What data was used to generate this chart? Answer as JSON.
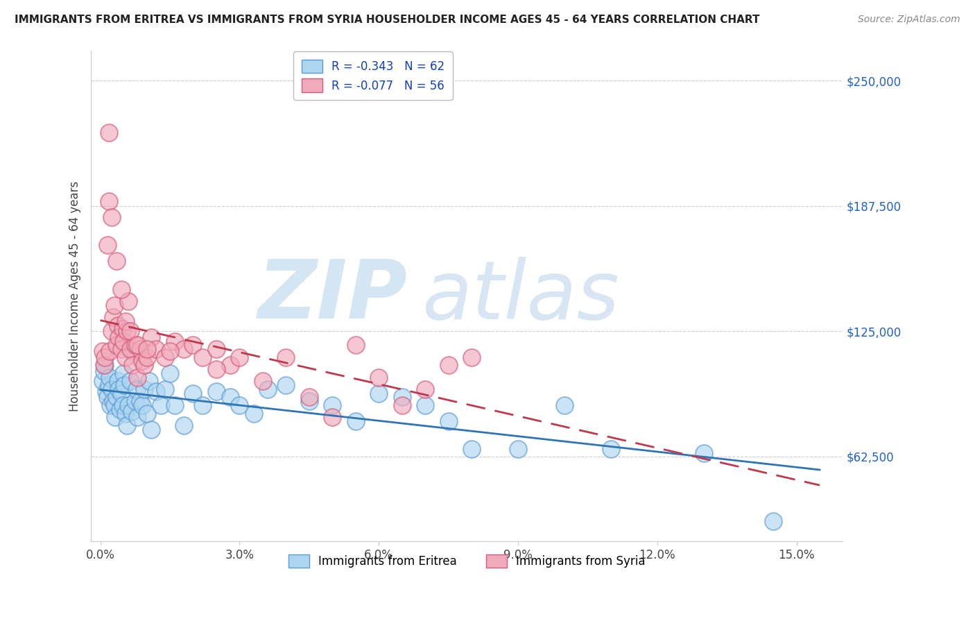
{
  "title": "IMMIGRANTS FROM ERITREA VS IMMIGRANTS FROM SYRIA HOUSEHOLDER INCOME AGES 45 - 64 YEARS CORRELATION CHART",
  "source": "Source: ZipAtlas.com",
  "ylabel": "Householder Income Ages 45 - 64 years",
  "ytick_labels": [
    "$62,500",
    "$125,000",
    "$187,500",
    "$250,000"
  ],
  "ytick_vals": [
    62500,
    125000,
    187500,
    250000
  ],
  "xtick_labels": [
    "0.0%",
    "3.0%",
    "6.0%",
    "9.0%",
    "12.0%",
    "15.0%"
  ],
  "xtick_vals": [
    0,
    3,
    6,
    9,
    12,
    15
  ],
  "ylim": [
    20000,
    265000
  ],
  "xlim": [
    -0.2,
    16.0
  ],
  "R_eritrea": -0.343,
  "N_eritrea": 62,
  "R_syria": -0.077,
  "N_syria": 56,
  "color_eritrea_fill": "#AED6F1",
  "color_eritrea_edge": "#5B9BD5",
  "color_syria_fill": "#F1AABB",
  "color_syria_edge": "#D45B7A",
  "trendline_eritrea_color": "#2E75B6",
  "trendline_syria_color": "#C0384B",
  "background_color": "#FFFFFF",
  "watermark_zip_color": "#D0E4F2",
  "watermark_atlas_color": "#C8DCF0",
  "title_fontsize": 11,
  "source_fontsize": 10,
  "tick_fontsize": 12,
  "ylabel_fontsize": 12,
  "legend_fontsize": 12,
  "eritrea_x": [
    0.05,
    0.08,
    0.1,
    0.12,
    0.15,
    0.18,
    0.2,
    0.22,
    0.25,
    0.28,
    0.3,
    0.32,
    0.35,
    0.38,
    0.4,
    0.42,
    0.45,
    0.48,
    0.5,
    0.52,
    0.55,
    0.58,
    0.6,
    0.65,
    0.68,
    0.7,
    0.75,
    0.78,
    0.8,
    0.85,
    0.9,
    0.95,
    1.0,
    1.05,
    1.1,
    1.2,
    1.3,
    1.4,
    1.5,
    1.6,
    1.8,
    2.0,
    2.2,
    2.5,
    2.8,
    3.0,
    3.3,
    3.6,
    4.0,
    4.5,
    5.0,
    5.5,
    6.0,
    6.5,
    7.0,
    7.5,
    8.0,
    9.0,
    10.0,
    11.0,
    13.0,
    14.5
  ],
  "eritrea_y": [
    100000,
    105000,
    108000,
    95000,
    92000,
    98000,
    102000,
    88000,
    96000,
    90000,
    88000,
    82000,
    92000,
    100000,
    96000,
    86000,
    94000,
    88000,
    104000,
    98000,
    84000,
    78000,
    88000,
    100000,
    85000,
    115000,
    90000,
    96000,
    82000,
    90000,
    88000,
    96000,
    84000,
    100000,
    76000,
    95000,
    88000,
    96000,
    104000,
    88000,
    78000,
    94000,
    88000,
    95000,
    92000,
    88000,
    84000,
    96000,
    98000,
    90000,
    88000,
    80000,
    94000,
    92000,
    88000,
    80000,
    66000,
    66000,
    88000,
    66000,
    64000,
    30000
  ],
  "syria_x": [
    0.05,
    0.08,
    0.1,
    0.15,
    0.18,
    0.2,
    0.25,
    0.28,
    0.3,
    0.35,
    0.38,
    0.4,
    0.45,
    0.48,
    0.5,
    0.55,
    0.58,
    0.6,
    0.65,
    0.7,
    0.75,
    0.8,
    0.85,
    0.9,
    0.95,
    1.0,
    1.1,
    1.2,
    1.4,
    1.6,
    1.8,
    2.0,
    2.2,
    2.5,
    2.8,
    3.0,
    3.5,
    4.0,
    4.5,
    5.0,
    5.5,
    6.0,
    6.5,
    7.0,
    7.5,
    8.0,
    0.18,
    0.25,
    0.35,
    0.45,
    0.55,
    0.65,
    0.8,
    1.0,
    1.5,
    2.5
  ],
  "syria_y": [
    115000,
    108000,
    112000,
    168000,
    190000,
    115000,
    125000,
    132000,
    138000,
    118000,
    128000,
    122000,
    116000,
    126000,
    120000,
    112000,
    125000,
    140000,
    116000,
    108000,
    118000,
    102000,
    116000,
    110000,
    108000,
    112000,
    122000,
    116000,
    112000,
    120000,
    116000,
    118000,
    112000,
    116000,
    108000,
    112000,
    100000,
    112000,
    92000,
    82000,
    118000,
    102000,
    88000,
    96000,
    108000,
    112000,
    224000,
    182000,
    160000,
    146000,
    130000,
    125000,
    118000,
    116000,
    115000,
    106000
  ]
}
